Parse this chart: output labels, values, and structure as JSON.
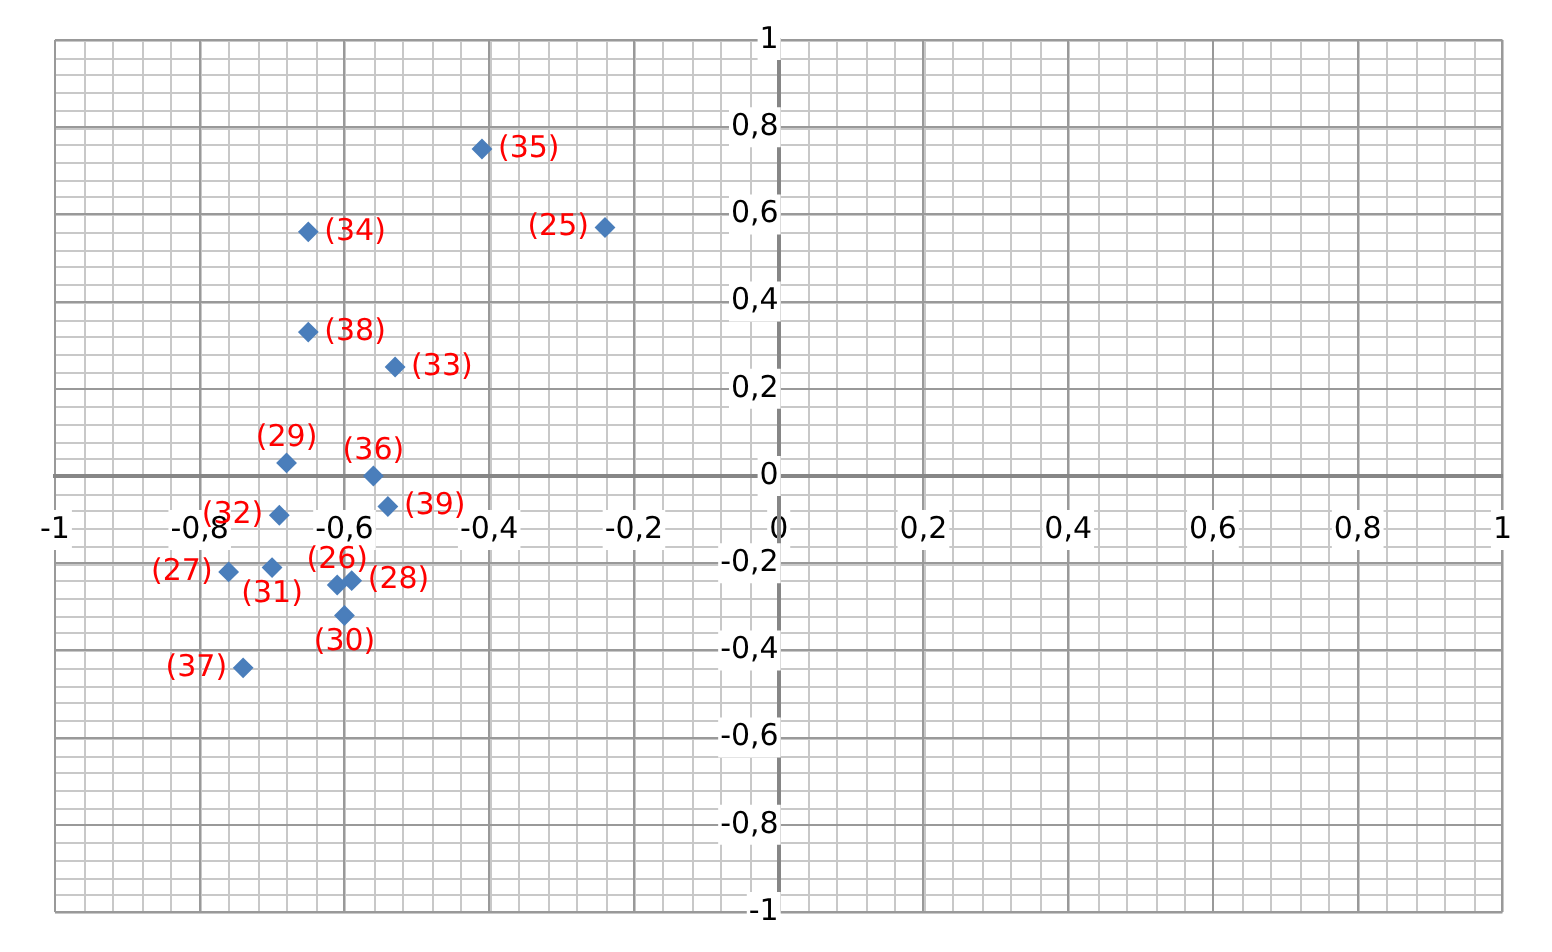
{
  "chart_data": {
    "type": "scatter",
    "xlim": [
      -1,
      1
    ],
    "ylim": [
      -1,
      1
    ],
    "xticks": [
      {
        "value": -1,
        "label": "-1"
      },
      {
        "value": -0.8,
        "label": "-0,8"
      },
      {
        "value": -0.6,
        "label": "-0,6"
      },
      {
        "value": -0.4,
        "label": "-0,4"
      },
      {
        "value": -0.2,
        "label": "-0,2"
      },
      0,
      {
        "value": 0.2,
        "label": "0,2"
      },
      {
        "value": 0.4,
        "label": "0,4"
      },
      {
        "value": 0.6,
        "label": "0,6"
      },
      {
        "value": 0.8,
        "label": "0,8"
      },
      1
    ],
    "yticks": [
      {
        "value": -1,
        "label": "-1"
      },
      {
        "value": -0.8,
        "label": "-0,8"
      },
      {
        "value": -0.6,
        "label": "-0,6"
      },
      {
        "value": -0.4,
        "label": "-0,4"
      },
      {
        "value": -0.2,
        "label": "-0,2"
      },
      0,
      {
        "value": 0.2,
        "label": "0,2"
      },
      {
        "value": 0.4,
        "label": "0,4"
      },
      {
        "value": 0.6,
        "label": "0,6"
      },
      {
        "value": 0.8,
        "label": "0,8"
      },
      1
    ],
    "grid": true,
    "marker": "diamond",
    "legend": false,
    "series": [
      {
        "color": "#4a7ebb",
        "x": [
          -0.24,
          -0.61,
          -0.76,
          -0.59,
          -0.68,
          -0.6,
          -0.7,
          -0.69,
          -0.53,
          -0.65,
          -0.41,
          -0.56,
          -0.74,
          -0.65,
          -0.54
        ],
        "values": [
          0.57,
          -0.25,
          -0.22,
          -0.24,
          0.03,
          -0.32,
          -0.21,
          -0.09,
          0.25,
          0.56,
          0.75,
          0,
          -0.44,
          0.33,
          -0.07
        ]
      }
    ],
    "annotations": [
      {
        "text": "(25)",
        "x": -0.24,
        "y": 0.57
      },
      {
        "text": "(26)",
        "x": -0.61,
        "y": -0.25
      },
      {
        "text": "(27)",
        "x": -0.76,
        "y": -0.22
      },
      {
        "text": "(28)",
        "x": -0.59,
        "y": -0.24
      },
      {
        "text": "(29)",
        "x": -0.68,
        "y": 0.03
      },
      {
        "text": "(30)",
        "x": -0.6,
        "y": -0.32
      },
      {
        "text": "(31)",
        "x": -0.7,
        "y": -0.21
      },
      {
        "text": "(32)",
        "x": -0.69,
        "y": -0.09
      },
      {
        "text": "(33)",
        "x": -0.53,
        "y": 0.25
      },
      {
        "text": "(34)",
        "x": -0.65,
        "y": 0.56
      },
      {
        "text": "(35)",
        "x": -0.41,
        "y": 0.75
      },
      {
        "text": "(36)",
        "x": -0.56,
        "y": 0
      },
      {
        "text": "(37)",
        "x": -0.74,
        "y": -0.44
      },
      {
        "text": "(38)",
        "x": -0.65,
        "y": 0.33
      },
      {
        "text": "(39)",
        "x": -0.54,
        "y": -0.07
      }
    ]
  }
}
